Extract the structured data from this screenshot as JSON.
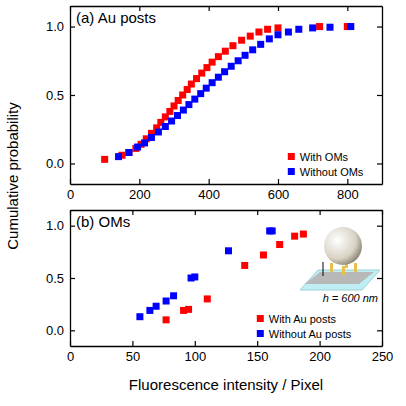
{
  "chart_data": [
    {
      "type": "scatter",
      "title": "(a) Au posts",
      "ylabel": "Cumulative probability",
      "xlim": [
        0,
        900
      ],
      "ylim": [
        -0.15,
        1.15
      ],
      "xticks": [
        0,
        200,
        400,
        600,
        800
      ],
      "yticks": [
        {
          "value": 0,
          "label": "0.0"
        },
        {
          "value": 0.5,
          "label": "0.5"
        },
        {
          "value": 1,
          "label": "1.0"
        }
      ],
      "legend": "lower right",
      "series": [
        {
          "name": "With OMs",
          "color": "#ff0000",
          "marker": "square",
          "x": [
            100,
            150,
            170,
            190,
            205,
            220,
            235,
            250,
            262,
            275,
            288,
            300,
            312,
            325,
            338,
            350,
            365,
            380,
            395,
            410,
            428,
            448,
            470,
            495,
            520,
            545,
            570,
            600,
            720,
            800
          ],
          "values": [
            0.03,
            0.06,
            0.08,
            0.11,
            0.14,
            0.18,
            0.22,
            0.26,
            0.3,
            0.34,
            0.38,
            0.42,
            0.46,
            0.5,
            0.54,
            0.58,
            0.62,
            0.66,
            0.7,
            0.74,
            0.78,
            0.82,
            0.86,
            0.9,
            0.93,
            0.96,
            0.98,
            0.99,
            1.0,
            1.0
          ]
        },
        {
          "name": "Without OMs",
          "color": "#0000ff",
          "marker": "square",
          "x": [
            140,
            170,
            195,
            215,
            235,
            255,
            275,
            293,
            310,
            327,
            343,
            360,
            377,
            393,
            410,
            428,
            446,
            465,
            485,
            505,
            527,
            550,
            575,
            600,
            630,
            660,
            700,
            750,
            810
          ],
          "values": [
            0.05,
            0.08,
            0.12,
            0.15,
            0.19,
            0.23,
            0.27,
            0.31,
            0.35,
            0.39,
            0.43,
            0.47,
            0.51,
            0.55,
            0.59,
            0.63,
            0.67,
            0.71,
            0.75,
            0.79,
            0.83,
            0.87,
            0.91,
            0.94,
            0.96,
            0.98,
            0.99,
            0.995,
            1.0
          ]
        }
      ]
    },
    {
      "type": "scatter",
      "title": "(b) OMs",
      "xlabel": "Fluorescence intensity / Pixel",
      "xlim": [
        0,
        250
      ],
      "ylim": [
        -0.15,
        1.15
      ],
      "xticks": [
        0,
        50,
        100,
        150,
        200,
        250
      ],
      "yticks": [
        {
          "value": 0,
          "label": "0.0"
        },
        {
          "value": 0.5,
          "label": "0.5"
        },
        {
          "value": 1,
          "label": "1.0"
        }
      ],
      "legend": "lower right",
      "annotations": [
        {
          "text": "h = 600 nm"
        }
      ],
      "series": [
        {
          "name": "With Au posts",
          "color": "#ff0000",
          "marker": "square",
          "x": [
            77,
            91,
            95,
            110,
            140,
            155,
            168,
            180,
            187
          ],
          "values": [
            0.1,
            0.19,
            0.2,
            0.3,
            0.62,
            0.72,
            0.82,
            0.9,
            0.92
          ]
        },
        {
          "name": "Without Au posts",
          "color": "#0000ff",
          "marker": "square",
          "x": [
            56,
            64,
            69,
            77,
            83,
            97,
            100,
            127,
            160,
            162
          ],
          "values": [
            0.13,
            0.19,
            0.23,
            0.28,
            0.33,
            0.5,
            0.51,
            0.76,
            0.95,
            0.95
          ]
        }
      ]
    }
  ]
}
